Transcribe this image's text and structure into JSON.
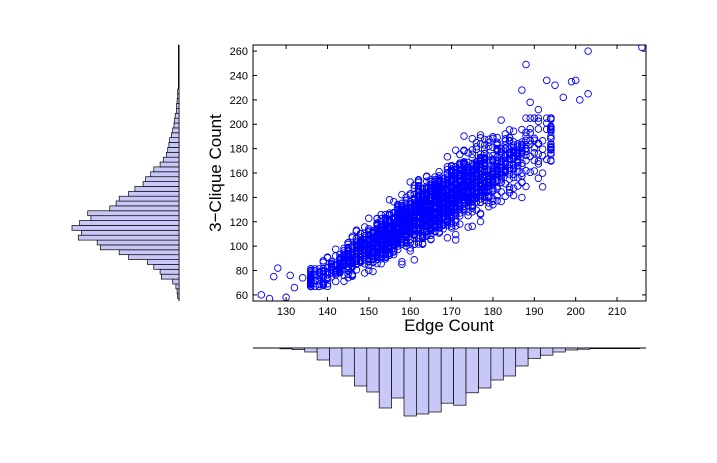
{
  "chart_data": [
    {
      "type": "scatter",
      "xlabel": "Edge Count",
      "ylabel": "3−Clique Count",
      "xlim": [
        122,
        217
      ],
      "ylim": [
        55,
        265
      ],
      "xticks": [
        130,
        140,
        150,
        160,
        170,
        180,
        190,
        200,
        210
      ],
      "yticks": [
        60,
        80,
        100,
        120,
        140,
        160,
        180,
        200,
        220,
        240,
        260
      ],
      "grid": false,
      "marker": "open-circle",
      "marker_color": "#0000ff",
      "distribution": {
        "n": 2400,
        "x_mean": 164,
        "x_sd": 13,
        "slope": 2.05,
        "y_at_x_mean": 129,
        "residual_sd": 11
      },
      "points": [
        {
          "x": 124,
          "y": 60
        },
        {
          "x": 126,
          "y": 57
        },
        {
          "x": 127,
          "y": 75
        },
        {
          "x": 128,
          "y": 82
        },
        {
          "x": 130,
          "y": 58
        },
        {
          "x": 131,
          "y": 76
        },
        {
          "x": 132,
          "y": 66
        },
        {
          "x": 134,
          "y": 74
        },
        {
          "x": 136,
          "y": 70
        },
        {
          "x": 187,
          "y": 228
        },
        {
          "x": 188,
          "y": 249
        },
        {
          "x": 189,
          "y": 218
        },
        {
          "x": 191,
          "y": 212
        },
        {
          "x": 193,
          "y": 236
        },
        {
          "x": 195,
          "y": 232
        },
        {
          "x": 197,
          "y": 222
        },
        {
          "x": 199,
          "y": 235
        },
        {
          "x": 200,
          "y": 236
        },
        {
          "x": 201,
          "y": 220
        },
        {
          "x": 203,
          "y": 225
        },
        {
          "x": 203,
          "y": 260
        },
        {
          "x": 216,
          "y": 263
        }
      ]
    },
    {
      "type": "histogram",
      "orientation": "vertical",
      "variable": "Edge Count",
      "bar_color": "#c8c8f8",
      "bins": [
        {
          "center": 130,
          "count": 2
        },
        {
          "center": 133,
          "count": 4
        },
        {
          "center": 136,
          "count": 10
        },
        {
          "center": 139,
          "count": 30
        },
        {
          "center": 142,
          "count": 45
        },
        {
          "center": 145,
          "count": 70
        },
        {
          "center": 148,
          "count": 95
        },
        {
          "center": 151,
          "count": 110
        },
        {
          "center": 154,
          "count": 150
        },
        {
          "center": 157,
          "count": 125
        },
        {
          "center": 160,
          "count": 170
        },
        {
          "center": 163,
          "count": 165
        },
        {
          "center": 166,
          "count": 160
        },
        {
          "center": 169,
          "count": 138
        },
        {
          "center": 172,
          "count": 143
        },
        {
          "center": 175,
          "count": 112
        },
        {
          "center": 178,
          "count": 100
        },
        {
          "center": 181,
          "count": 80
        },
        {
          "center": 184,
          "count": 70
        },
        {
          "center": 187,
          "count": 45
        },
        {
          "center": 190,
          "count": 26
        },
        {
          "center": 193,
          "count": 18
        },
        {
          "center": 196,
          "count": 10
        },
        {
          "center": 199,
          "count": 5
        },
        {
          "center": 202,
          "count": 3
        },
        {
          "center": 205,
          "count": 1
        },
        {
          "center": 208,
          "count": 1
        },
        {
          "center": 211,
          "count": 0.5
        },
        {
          "center": 214,
          "count": 0.5
        }
      ]
    },
    {
      "type": "histogram",
      "orientation": "horizontal",
      "variable": "3−Clique Count",
      "bar_color": "#c8c8f8",
      "bins": [
        {
          "center": 59,
          "count": 2
        },
        {
          "center": 63,
          "count": 3
        },
        {
          "center": 67,
          "count": 5
        },
        {
          "center": 71,
          "count": 10
        },
        {
          "center": 75,
          "count": 28
        },
        {
          "center": 79,
          "count": 30
        },
        {
          "center": 83,
          "count": 40
        },
        {
          "center": 87,
          "count": 50
        },
        {
          "center": 91,
          "count": 80
        },
        {
          "center": 95,
          "count": 95
        },
        {
          "center": 99,
          "count": 125
        },
        {
          "center": 103,
          "count": 130
        },
        {
          "center": 107,
          "count": 160
        },
        {
          "center": 111,
          "count": 155
        },
        {
          "center": 115,
          "count": 170
        },
        {
          "center": 119,
          "count": 158
        },
        {
          "center": 123,
          "count": 140
        },
        {
          "center": 127,
          "count": 145
        },
        {
          "center": 131,
          "count": 110
        },
        {
          "center": 135,
          "count": 100
        },
        {
          "center": 139,
          "count": 95
        },
        {
          "center": 143,
          "count": 80
        },
        {
          "center": 147,
          "count": 70
        },
        {
          "center": 151,
          "count": 57
        },
        {
          "center": 155,
          "count": 53
        },
        {
          "center": 159,
          "count": 45
        },
        {
          "center": 163,
          "count": 40
        },
        {
          "center": 167,
          "count": 30
        },
        {
          "center": 171,
          "count": 25
        },
        {
          "center": 175,
          "count": 20
        },
        {
          "center": 179,
          "count": 18
        },
        {
          "center": 183,
          "count": 16
        },
        {
          "center": 187,
          "count": 15
        },
        {
          "center": 191,
          "count": 12
        },
        {
          "center": 195,
          "count": 10
        },
        {
          "center": 199,
          "count": 8
        },
        {
          "center": 203,
          "count": 7
        },
        {
          "center": 207,
          "count": 6
        },
        {
          "center": 211,
          "count": 4
        },
        {
          "center": 215,
          "count": 4
        },
        {
          "center": 219,
          "count": 3
        },
        {
          "center": 223,
          "count": 2
        },
        {
          "center": 227,
          "count": 2
        },
        {
          "center": 231,
          "count": 1
        },
        {
          "center": 235,
          "count": 1
        },
        {
          "center": 239,
          "count": 1
        },
        {
          "center": 243,
          "count": 0.5
        },
        {
          "center": 247,
          "count": 0.5
        },
        {
          "center": 251,
          "count": 0.5
        },
        {
          "center": 255,
          "count": 0.5
        },
        {
          "center": 259,
          "count": 0.5
        },
        {
          "center": 263,
          "count": 0.5
        }
      ]
    }
  ]
}
